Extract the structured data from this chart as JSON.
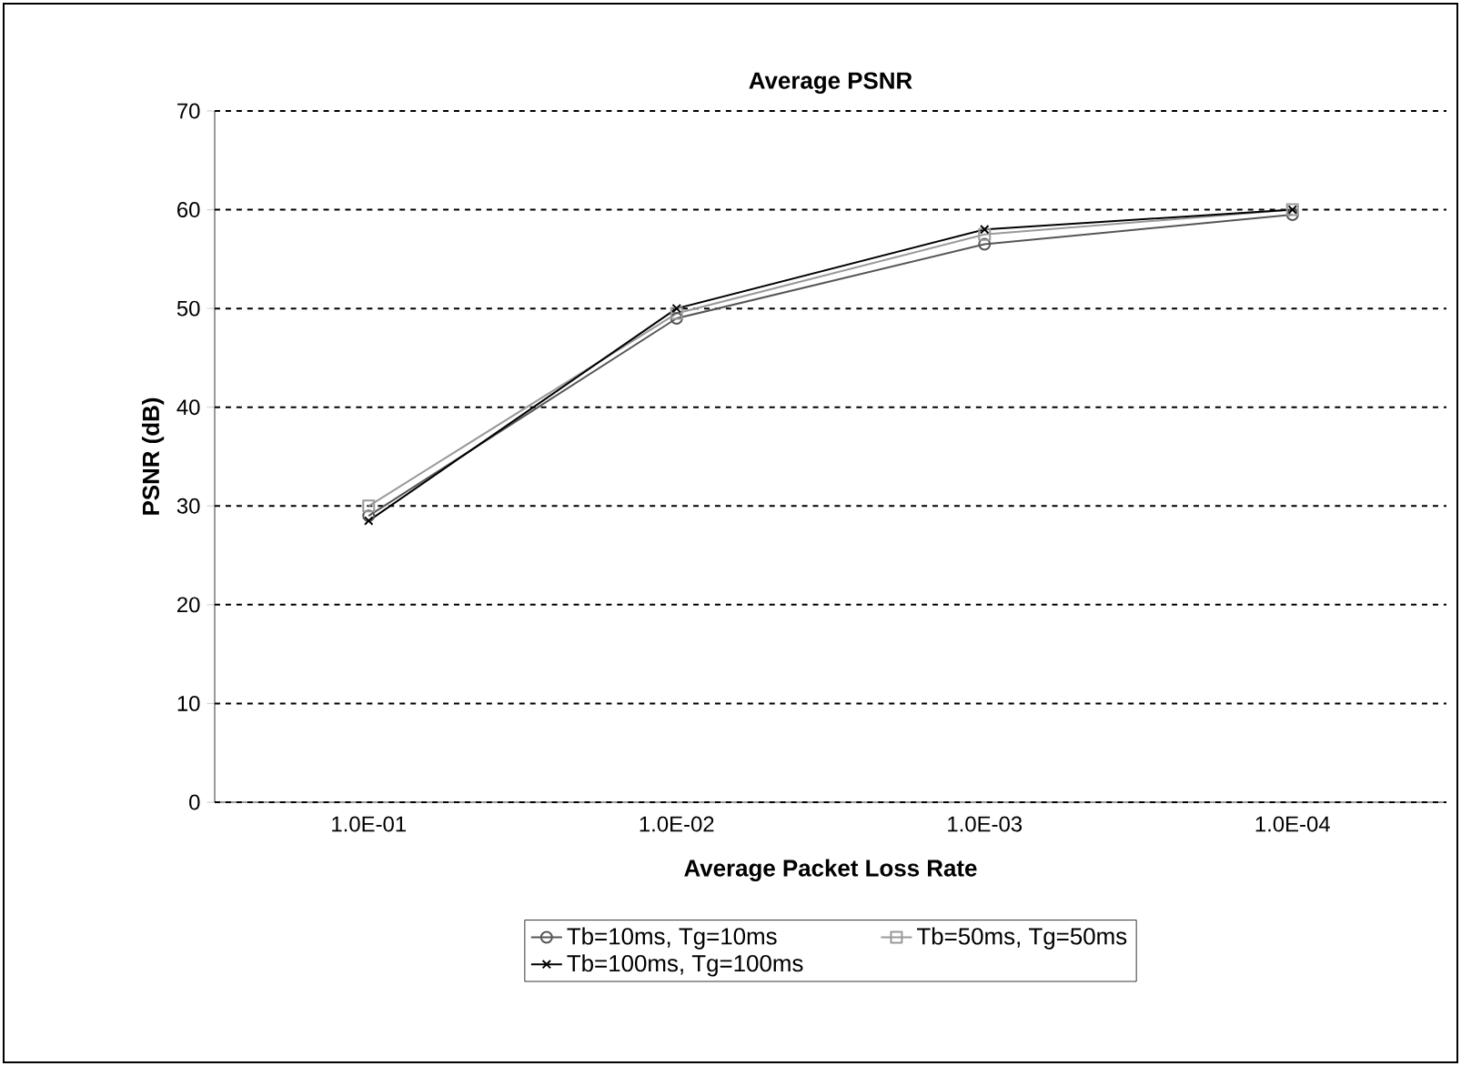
{
  "chart_data": {
    "type": "line",
    "title": "Average PSNR",
    "xlabel": "Average Packet Loss Rate",
    "ylabel": "PSNR (dB)",
    "categories": [
      "1.0E-01",
      "1.0E-02",
      "1.0E-03",
      "1.0E-04"
    ],
    "series": [
      {
        "name": "Tb=10ms, Tg=10ms",
        "color": "#555555",
        "marker": "circle",
        "values": [
          29,
          49,
          56.5,
          59.5
        ]
      },
      {
        "name": "Tb=50ms, Tg=50ms",
        "color": "#999999",
        "marker": "square",
        "values": [
          30,
          49.5,
          57.5,
          60
        ]
      },
      {
        "name": "Tb=100ms, Tg=100ms",
        "color": "#000000",
        "marker": "cross",
        "values": [
          28.5,
          50,
          58,
          60
        ]
      }
    ],
    "ylim": [
      0,
      70
    ],
    "yticks": [
      0,
      10,
      20,
      30,
      40,
      50,
      60,
      70
    ],
    "grid": "y",
    "legend": "bottom",
    "line_style": "solid"
  }
}
